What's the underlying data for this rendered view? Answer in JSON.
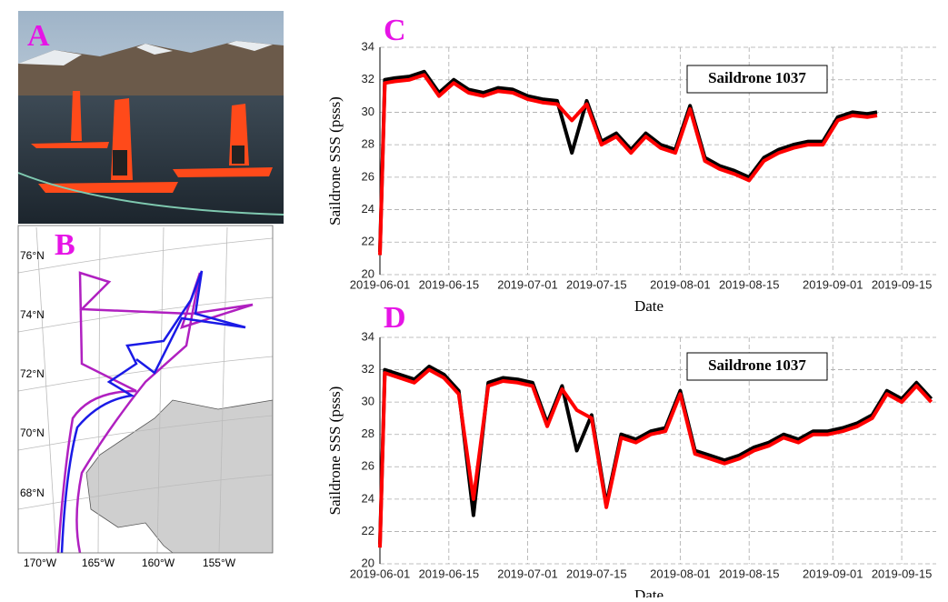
{
  "panels": [
    "A",
    "B",
    "C",
    "D"
  ],
  "map": {
    "lat_labels": [
      "76°N",
      "74°N",
      "72°N",
      "70°N",
      "68°N"
    ],
    "lon_labels": [
      "170°W",
      "165°W",
      "160°W",
      "155°W"
    ]
  },
  "chart_data": [
    {
      "type": "line",
      "annotation": "Saildrone 1037",
      "xlabel": "Date",
      "ylabel": "Saildrone SSS (psss)",
      "x": [
        "2019-06-01",
        "2019-06-02",
        "2019-06-04",
        "2019-06-07",
        "2019-06-10",
        "2019-06-13",
        "2019-06-16",
        "2019-06-19",
        "2019-06-22",
        "2019-06-25",
        "2019-06-28",
        "2019-07-01",
        "2019-07-04",
        "2019-07-07",
        "2019-07-10",
        "2019-07-13",
        "2019-07-16",
        "2019-07-19",
        "2019-07-22",
        "2019-07-25",
        "2019-07-28",
        "2019-07-31",
        "2019-08-03",
        "2019-08-06",
        "2019-08-09",
        "2019-08-12",
        "2019-08-15",
        "2019-08-18",
        "2019-08-21",
        "2019-08-24",
        "2019-08-27",
        "2019-08-30",
        "2019-09-02",
        "2019-09-05",
        "2019-09-08",
        "2019-09-10"
      ],
      "series": [
        {
          "color": "#000000",
          "values": [
            21.4,
            32.0,
            32.1,
            32.2,
            32.5,
            31.2,
            32.0,
            31.4,
            31.2,
            31.5,
            31.4,
            31.0,
            30.8,
            30.7,
            27.5,
            30.7,
            28.2,
            28.7,
            27.7,
            28.7,
            28.0,
            27.7,
            30.4,
            27.2,
            26.7,
            26.4,
            26.0,
            27.2,
            27.7,
            28.0,
            28.2,
            28.2,
            29.7,
            30.0,
            29.9,
            30.0
          ]
        },
        {
          "color": "#ff0000",
          "values": [
            21.2,
            31.8,
            31.9,
            32.0,
            32.3,
            31.0,
            31.8,
            31.2,
            31.0,
            31.3,
            31.2,
            30.8,
            30.6,
            30.5,
            29.5,
            30.5,
            28.0,
            28.5,
            27.5,
            28.5,
            27.8,
            27.5,
            30.2,
            27.0,
            26.5,
            26.2,
            25.8,
            27.0,
            27.5,
            27.8,
            28.0,
            28.0,
            29.5,
            29.8,
            29.7,
            29.8
          ]
        }
      ],
      "xlim": [
        "2019-06-01",
        "2019-09-22"
      ],
      "xticks": [
        "2019-06-01",
        "2019-06-15",
        "2019-07-01",
        "2019-07-15",
        "2019-08-01",
        "2019-08-15",
        "2019-09-01",
        "2019-09-15"
      ],
      "ylim": [
        20,
        34
      ],
      "yticks": [
        20,
        22,
        24,
        26,
        28,
        30,
        32,
        34
      ],
      "grid": true
    },
    {
      "type": "line",
      "annotation": "Saildrone 1037",
      "xlabel": "Date",
      "ylabel": "Saildrone SSS (psss)",
      "x": [
        "2019-06-01",
        "2019-06-02",
        "2019-06-05",
        "2019-06-08",
        "2019-06-11",
        "2019-06-14",
        "2019-06-17",
        "2019-06-20",
        "2019-06-23",
        "2019-06-26",
        "2019-06-29",
        "2019-07-02",
        "2019-07-05",
        "2019-07-08",
        "2019-07-11",
        "2019-07-14",
        "2019-07-17",
        "2019-07-20",
        "2019-07-23",
        "2019-07-26",
        "2019-07-29",
        "2019-08-01",
        "2019-08-04",
        "2019-08-07",
        "2019-08-10",
        "2019-08-13",
        "2019-08-16",
        "2019-08-19",
        "2019-08-22",
        "2019-08-25",
        "2019-08-28",
        "2019-08-31",
        "2019-09-03",
        "2019-09-06",
        "2019-09-09",
        "2019-09-12",
        "2019-09-15",
        "2019-09-18",
        "2019-09-21"
      ],
      "series": [
        {
          "color": "#000000",
          "values": [
            21.2,
            32.0,
            31.7,
            31.4,
            32.2,
            31.7,
            30.7,
            23.0,
            31.2,
            31.5,
            31.4,
            31.2,
            28.7,
            31.0,
            27.0,
            29.2,
            23.7,
            28.0,
            27.7,
            28.2,
            28.4,
            30.7,
            27.0,
            26.7,
            26.4,
            26.7,
            27.2,
            27.5,
            28.0,
            27.7,
            28.2,
            28.2,
            28.4,
            28.7,
            29.2,
            30.7,
            30.2,
            31.2,
            30.2
          ]
        },
        {
          "color": "#ff0000",
          "values": [
            21.0,
            31.8,
            31.5,
            31.2,
            32.0,
            31.5,
            30.5,
            24.0,
            31.0,
            31.3,
            31.2,
            31.0,
            28.5,
            30.8,
            29.5,
            29.0,
            23.5,
            27.8,
            27.5,
            28.0,
            28.2,
            30.5,
            26.8,
            26.5,
            26.2,
            26.5,
            27.0,
            27.3,
            27.8,
            27.5,
            28.0,
            28.0,
            28.2,
            28.5,
            29.0,
            30.5,
            30.0,
            31.0,
            30.0
          ]
        }
      ],
      "xlim": [
        "2019-06-01",
        "2019-09-22"
      ],
      "xticks": [
        "2019-06-01",
        "2019-06-15",
        "2019-07-01",
        "2019-07-15",
        "2019-08-01",
        "2019-08-15",
        "2019-09-01",
        "2019-09-15"
      ],
      "ylim": [
        20,
        34
      ],
      "yticks": [
        20,
        22,
        24,
        26,
        28,
        30,
        32,
        34
      ],
      "grid": true
    }
  ]
}
